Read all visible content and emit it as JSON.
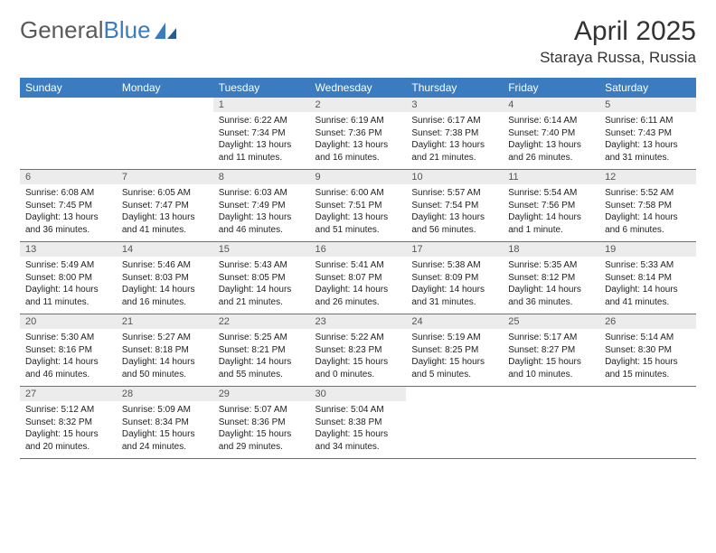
{
  "logo": {
    "general": "General",
    "blue": "Blue"
  },
  "title": "April 2025",
  "location": "Staraya Russa, Russia",
  "colors": {
    "header_bg": "#3b7bbf",
    "daynum_bg": "#ececec",
    "text": "#222222"
  },
  "weekdays": [
    "Sunday",
    "Monday",
    "Tuesday",
    "Wednesday",
    "Thursday",
    "Friday",
    "Saturday"
  ],
  "weeks": [
    [
      {
        "blank": true
      },
      {
        "blank": true
      },
      {
        "num": "1",
        "sunrise": "Sunrise: 6:22 AM",
        "sunset": "Sunset: 7:34 PM",
        "daylight": "Daylight: 13 hours and 11 minutes."
      },
      {
        "num": "2",
        "sunrise": "Sunrise: 6:19 AM",
        "sunset": "Sunset: 7:36 PM",
        "daylight": "Daylight: 13 hours and 16 minutes."
      },
      {
        "num": "3",
        "sunrise": "Sunrise: 6:17 AM",
        "sunset": "Sunset: 7:38 PM",
        "daylight": "Daylight: 13 hours and 21 minutes."
      },
      {
        "num": "4",
        "sunrise": "Sunrise: 6:14 AM",
        "sunset": "Sunset: 7:40 PM",
        "daylight": "Daylight: 13 hours and 26 minutes."
      },
      {
        "num": "5",
        "sunrise": "Sunrise: 6:11 AM",
        "sunset": "Sunset: 7:43 PM",
        "daylight": "Daylight: 13 hours and 31 minutes."
      }
    ],
    [
      {
        "num": "6",
        "sunrise": "Sunrise: 6:08 AM",
        "sunset": "Sunset: 7:45 PM",
        "daylight": "Daylight: 13 hours and 36 minutes."
      },
      {
        "num": "7",
        "sunrise": "Sunrise: 6:05 AM",
        "sunset": "Sunset: 7:47 PM",
        "daylight": "Daylight: 13 hours and 41 minutes."
      },
      {
        "num": "8",
        "sunrise": "Sunrise: 6:03 AM",
        "sunset": "Sunset: 7:49 PM",
        "daylight": "Daylight: 13 hours and 46 minutes."
      },
      {
        "num": "9",
        "sunrise": "Sunrise: 6:00 AM",
        "sunset": "Sunset: 7:51 PM",
        "daylight": "Daylight: 13 hours and 51 minutes."
      },
      {
        "num": "10",
        "sunrise": "Sunrise: 5:57 AM",
        "sunset": "Sunset: 7:54 PM",
        "daylight": "Daylight: 13 hours and 56 minutes."
      },
      {
        "num": "11",
        "sunrise": "Sunrise: 5:54 AM",
        "sunset": "Sunset: 7:56 PM",
        "daylight": "Daylight: 14 hours and 1 minute."
      },
      {
        "num": "12",
        "sunrise": "Sunrise: 5:52 AM",
        "sunset": "Sunset: 7:58 PM",
        "daylight": "Daylight: 14 hours and 6 minutes."
      }
    ],
    [
      {
        "num": "13",
        "sunrise": "Sunrise: 5:49 AM",
        "sunset": "Sunset: 8:00 PM",
        "daylight": "Daylight: 14 hours and 11 minutes."
      },
      {
        "num": "14",
        "sunrise": "Sunrise: 5:46 AM",
        "sunset": "Sunset: 8:03 PM",
        "daylight": "Daylight: 14 hours and 16 minutes."
      },
      {
        "num": "15",
        "sunrise": "Sunrise: 5:43 AM",
        "sunset": "Sunset: 8:05 PM",
        "daylight": "Daylight: 14 hours and 21 minutes."
      },
      {
        "num": "16",
        "sunrise": "Sunrise: 5:41 AM",
        "sunset": "Sunset: 8:07 PM",
        "daylight": "Daylight: 14 hours and 26 minutes."
      },
      {
        "num": "17",
        "sunrise": "Sunrise: 5:38 AM",
        "sunset": "Sunset: 8:09 PM",
        "daylight": "Daylight: 14 hours and 31 minutes."
      },
      {
        "num": "18",
        "sunrise": "Sunrise: 5:35 AM",
        "sunset": "Sunset: 8:12 PM",
        "daylight": "Daylight: 14 hours and 36 minutes."
      },
      {
        "num": "19",
        "sunrise": "Sunrise: 5:33 AM",
        "sunset": "Sunset: 8:14 PM",
        "daylight": "Daylight: 14 hours and 41 minutes."
      }
    ],
    [
      {
        "num": "20",
        "sunrise": "Sunrise: 5:30 AM",
        "sunset": "Sunset: 8:16 PM",
        "daylight": "Daylight: 14 hours and 46 minutes."
      },
      {
        "num": "21",
        "sunrise": "Sunrise: 5:27 AM",
        "sunset": "Sunset: 8:18 PM",
        "daylight": "Daylight: 14 hours and 50 minutes."
      },
      {
        "num": "22",
        "sunrise": "Sunrise: 5:25 AM",
        "sunset": "Sunset: 8:21 PM",
        "daylight": "Daylight: 14 hours and 55 minutes."
      },
      {
        "num": "23",
        "sunrise": "Sunrise: 5:22 AM",
        "sunset": "Sunset: 8:23 PM",
        "daylight": "Daylight: 15 hours and 0 minutes."
      },
      {
        "num": "24",
        "sunrise": "Sunrise: 5:19 AM",
        "sunset": "Sunset: 8:25 PM",
        "daylight": "Daylight: 15 hours and 5 minutes."
      },
      {
        "num": "25",
        "sunrise": "Sunrise: 5:17 AM",
        "sunset": "Sunset: 8:27 PM",
        "daylight": "Daylight: 15 hours and 10 minutes."
      },
      {
        "num": "26",
        "sunrise": "Sunrise: 5:14 AM",
        "sunset": "Sunset: 8:30 PM",
        "daylight": "Daylight: 15 hours and 15 minutes."
      }
    ],
    [
      {
        "num": "27",
        "sunrise": "Sunrise: 5:12 AM",
        "sunset": "Sunset: 8:32 PM",
        "daylight": "Daylight: 15 hours and 20 minutes."
      },
      {
        "num": "28",
        "sunrise": "Sunrise: 5:09 AM",
        "sunset": "Sunset: 8:34 PM",
        "daylight": "Daylight: 15 hours and 24 minutes."
      },
      {
        "num": "29",
        "sunrise": "Sunrise: 5:07 AM",
        "sunset": "Sunset: 8:36 PM",
        "daylight": "Daylight: 15 hours and 29 minutes."
      },
      {
        "num": "30",
        "sunrise": "Sunrise: 5:04 AM",
        "sunset": "Sunset: 8:38 PM",
        "daylight": "Daylight: 15 hours and 34 minutes."
      },
      {
        "blank": true
      },
      {
        "blank": true
      },
      {
        "blank": true
      }
    ]
  ]
}
